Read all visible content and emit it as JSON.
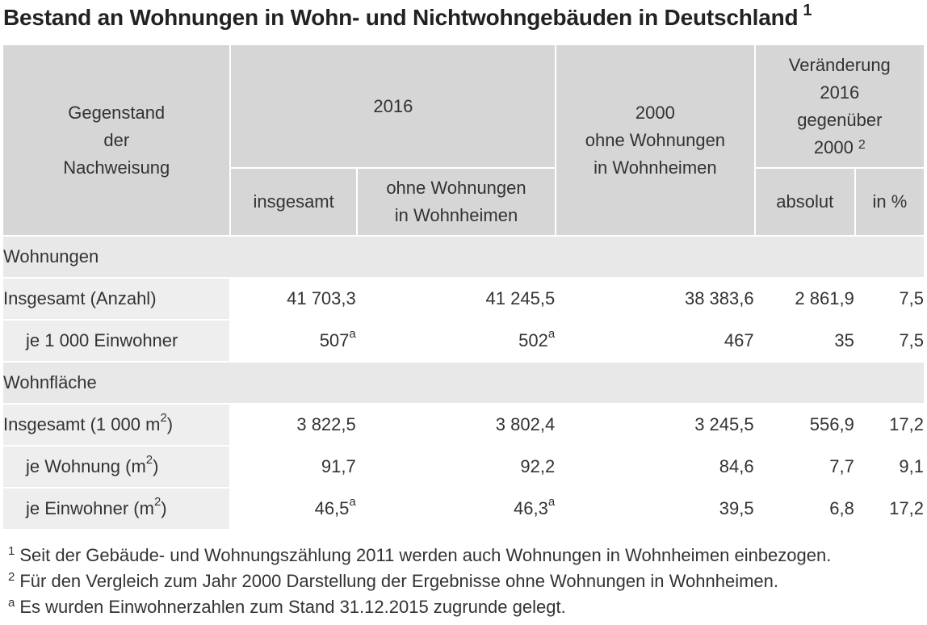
{
  "title": {
    "text": "Bestand an Wohnungen in Wohn- und Nichtwohngebäuden in Deutschland",
    "sup": "1"
  },
  "header": {
    "subject": [
      "Gegenstand",
      "der",
      "Nachweisung"
    ],
    "year_2016": "2016",
    "total": "insgesamt",
    "without_homes": [
      "ohne Wohnungen",
      "in Wohnheimen"
    ],
    "year_2000": [
      "2000",
      "ohne Wohnungen",
      "in Wohnheimen"
    ],
    "change": [
      "Veränderung",
      "2016",
      "gegenüber",
      "2000"
    ],
    "change_sup": "2",
    "absolute": "absolut",
    "percent": "in %"
  },
  "sections": {
    "dwellings": "Wohnungen",
    "area": "Wohnfläche"
  },
  "rows": [
    {
      "label": "Insgesamt (Anzahl)",
      "unit_sup": "",
      "label_tail": "",
      "c1": "41 703,3",
      "c1_sup": "",
      "c2": "41 245,5",
      "c2_sup": "",
      "c3": "38 383,6",
      "c4": "2 861,9",
      "c5": "7,5"
    },
    {
      "label": "je 1 000 Einwohner",
      "unit_sup": "",
      "label_tail": "",
      "c1": "507",
      "c1_sup": "a",
      "c2": "502",
      "c2_sup": "a",
      "c3": "467",
      "c4": "35",
      "c5": "7,5"
    },
    {
      "label": "Insgesamt (1 000 m",
      "unit_sup": "2",
      "label_tail": ")",
      "c1": "3 822,5",
      "c1_sup": "",
      "c2": "3 802,4",
      "c2_sup": "",
      "c3": "3 245,5",
      "c4": "556,9",
      "c5": "17,2"
    },
    {
      "label": "je Wohnung (m",
      "unit_sup": "2",
      "label_tail": ")",
      "c1": "91,7",
      "c1_sup": "",
      "c2": "92,2",
      "c2_sup": "",
      "c3": "84,6",
      "c4": "7,7",
      "c5": "9,1"
    },
    {
      "label": "je Einwohner (m",
      "unit_sup": "2",
      "label_tail": ")",
      "c1": "46,5",
      "c1_sup": "a",
      "c2": "46,3",
      "c2_sup": "a",
      "c3": "39,5",
      "c4": "6,8",
      "c5": "17,2"
    }
  ],
  "footnotes": [
    {
      "mark": "1",
      "text": "Seit der Gebäude- und Wohnungszählung 2011 werden auch Wohnungen in Wohnheimen einbezogen."
    },
    {
      "mark": "2",
      "text": "Für den Vergleich zum Jahr 2000 Darstellung der Ergebnisse ohne Wohnungen in Wohnheimen."
    },
    {
      "mark": "a",
      "text": "Es wurden Einwohnerzahlen zum Stand 31.12.2015 zugrunde gelegt."
    }
  ]
}
